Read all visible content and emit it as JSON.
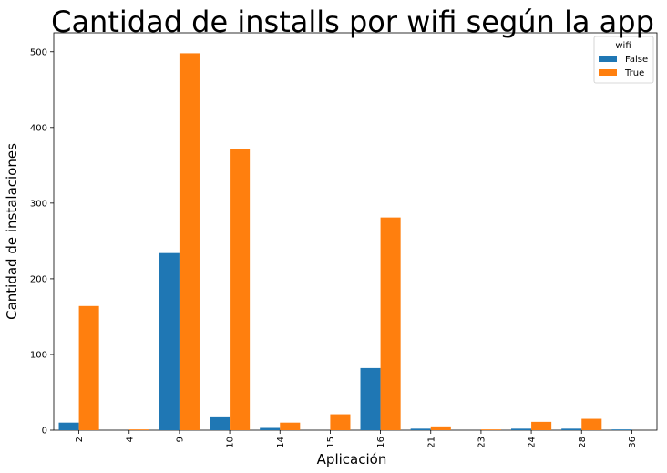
{
  "chart_data": {
    "type": "bar",
    "title": "Cantidad de installs por wifi según la app",
    "xlabel": "Aplicación",
    "ylabel": "Cantidad de instalaciones",
    "categories": [
      "2",
      "4",
      "9",
      "10",
      "14",
      "15",
      "16",
      "21",
      "23",
      "24",
      "28",
      "36"
    ],
    "series": [
      {
        "name": "False",
        "color": "#1f77b4",
        "values": [
          10,
          0,
          234,
          17,
          3,
          0,
          82,
          2,
          0,
          2,
          2,
          1
        ]
      },
      {
        "name": "True",
        "color": "#ff7f0e",
        "values": [
          164,
          1,
          498,
          372,
          10,
          21,
          281,
          5,
          1,
          11,
          15,
          0
        ]
      }
    ],
    "ylim": [
      0,
      525
    ],
    "yticks": [
      0,
      100,
      200,
      300,
      400,
      500
    ],
    "legend": {
      "title": "wifi",
      "placement": "top-right"
    },
    "grid": false
  }
}
